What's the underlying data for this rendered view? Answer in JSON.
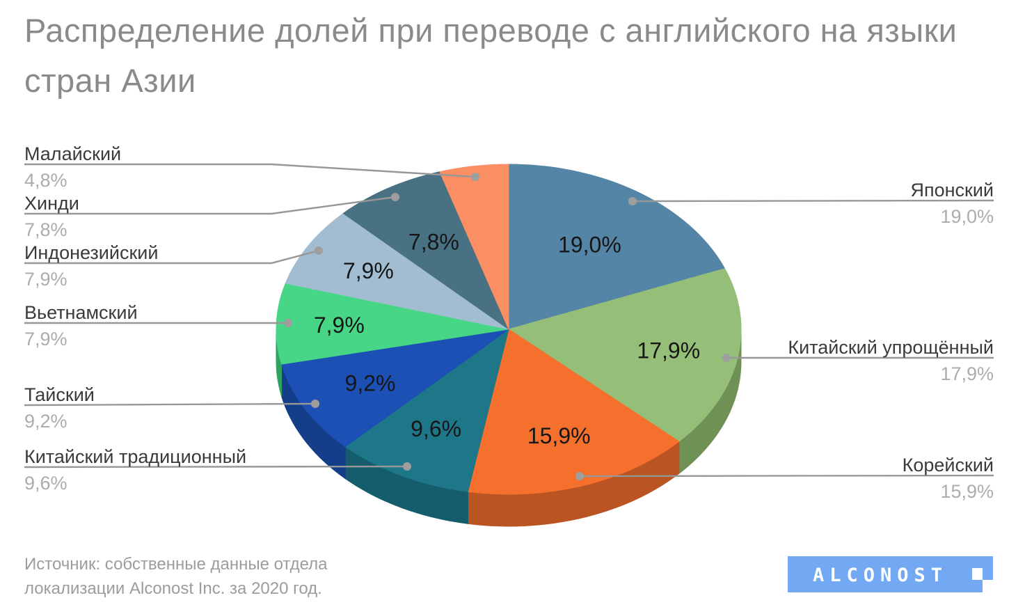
{
  "title": "Распределение долей при переводе с английского на языки стран Азии",
  "source": {
    "line1": "Источник: собственные данные отдела",
    "line2": "локализации Alconost Inc. за 2020 год."
  },
  "logo": {
    "text": "ALCONOST",
    "color": "#72A9F2",
    "text_color": "#FFFFFF"
  },
  "chart_data": {
    "type": "pie",
    "style": "3d-pie",
    "title": "Распределение долей при переводе с английского на языки стран Азии",
    "unit": "%",
    "direction": "clockwise",
    "start_angle_deg": 0,
    "legend_position": "callouts",
    "total": 100.0,
    "slices": [
      {
        "label": "Японский",
        "value": 19.0,
        "display": "19,0%",
        "color": "#5484A6",
        "side_color": "#3F6781",
        "callout_side": "right"
      },
      {
        "label": "Китайский упрощённый",
        "value": 17.9,
        "display": "17,9%",
        "color": "#95BE78",
        "side_color": "#6F9156",
        "callout_side": "right"
      },
      {
        "label": "Корейский",
        "value": 15.9,
        "display": "15,9%",
        "color": "#F4702C",
        "side_color": "#BA5523",
        "callout_side": "right"
      },
      {
        "label": "Китайский традиционный",
        "value": 9.6,
        "display": "9,6%",
        "color": "#1E7689",
        "side_color": "#155D6C",
        "callout_side": "left"
      },
      {
        "label": "Тайский",
        "value": 9.2,
        "display": "9,2%",
        "color": "#1C50B4",
        "side_color": "#143D8A",
        "callout_side": "left"
      },
      {
        "label": "Вьетнамский",
        "value": 7.9,
        "display": "7,9%",
        "color": "#47D685",
        "side_color": "#2EA260",
        "callout_side": "left"
      },
      {
        "label": "Индонезийский",
        "value": 7.9,
        "display": "7,9%",
        "color": "#A2BDD1",
        "side_color": "#7D93A6",
        "callout_side": "left"
      },
      {
        "label": "Хинди",
        "value": 7.8,
        "display": "7,8%",
        "color": "#487183",
        "side_color": "#365764",
        "callout_side": "left"
      },
      {
        "label": "Малайский",
        "value": 4.8,
        "display": "4,8%",
        "color": "#FA8F64",
        "side_color": "#C66F4B",
        "callout_side": "left"
      }
    ]
  }
}
